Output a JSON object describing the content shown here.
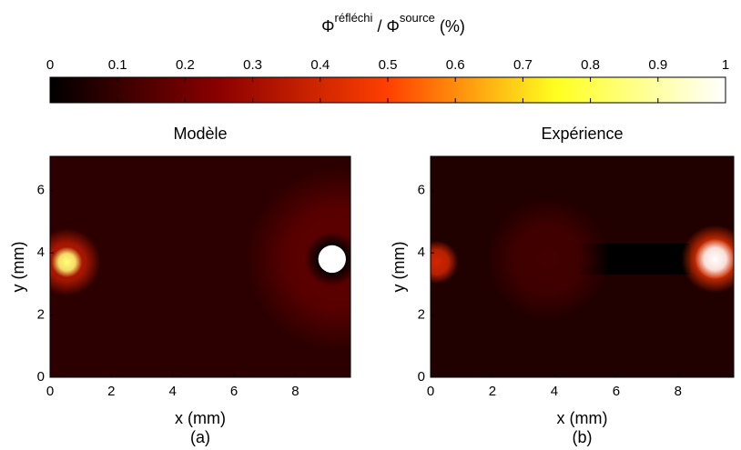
{
  "chart_data": [
    {
      "type": "colorbar",
      "title": {
        "symbol1": "Φ",
        "sup1": "réfléchi",
        "mid": " / Φ",
        "sup2": "source",
        "unit": " (%)"
      },
      "xlim": [
        0,
        1
      ],
      "xticks": [
        0,
        0.1,
        0.2,
        0.3,
        0.4,
        0.5,
        0.6,
        0.7,
        0.8,
        0.9,
        1
      ],
      "colormap": [
        "#000000",
        "#8b0000",
        "#ff4000",
        "#ffff20",
        "#ffffff"
      ]
    },
    {
      "type": "heatmap",
      "title": "Modèle",
      "xlabel": "x (mm)",
      "ylabel": "y (mm)",
      "caption": "(a)",
      "xlim": [
        0,
        9.8
      ],
      "ylim": [
        0,
        7.1
      ],
      "xticks": [
        0,
        2,
        4,
        6,
        8
      ],
      "yticks": [
        0,
        2,
        4,
        6
      ],
      "background": 0.08,
      "spots": [
        {
          "x": 9.4,
          "y": 3.8,
          "r": 3.0,
          "value": 0.17,
          "edge": "soft"
        },
        {
          "x": 9.2,
          "y": 3.8,
          "r": 0.9,
          "value": 0.0,
          "edge": "soft"
        },
        {
          "x": 0.55,
          "y": 3.7,
          "r": 1.1,
          "value": 0.35,
          "edge": "soft"
        },
        {
          "x": 0.55,
          "y": 3.7,
          "r": 0.5,
          "value": 0.85,
          "edge": "soft"
        },
        {
          "x": 9.2,
          "y": 3.8,
          "r": 0.45,
          "value": 1,
          "edge": "sharp"
        }
      ],
      "regions": []
    },
    {
      "type": "heatmap",
      "title": "Expérience",
      "xlabel": "x (mm)",
      "ylabel": "y (mm)",
      "caption": "(b)",
      "xlim": [
        0,
        9.8
      ],
      "ylim": [
        0,
        7.1
      ],
      "xticks": [
        0,
        2,
        4,
        6,
        8
      ],
      "yticks": [
        0,
        2,
        4,
        6
      ],
      "background": 0.06,
      "spots": [
        {
          "x": 3.8,
          "y": 3.8,
          "r": 2.0,
          "value": 0.12,
          "edge": "soft"
        },
        {
          "x": 0.2,
          "y": 3.7,
          "r": 0.7,
          "value": 0.4,
          "edge": "soft"
        },
        {
          "x": 9.2,
          "y": 3.8,
          "r": 1.1,
          "value": 0.45,
          "edge": "soft"
        },
        {
          "x": 9.2,
          "y": 3.8,
          "r": 0.65,
          "value": 1,
          "edge": "soft"
        }
      ],
      "regions": [
        {
          "x0": 4.8,
          "x1": 8.4,
          "y0": 3.3,
          "y1": 4.3,
          "value": 0.0
        }
      ]
    }
  ]
}
